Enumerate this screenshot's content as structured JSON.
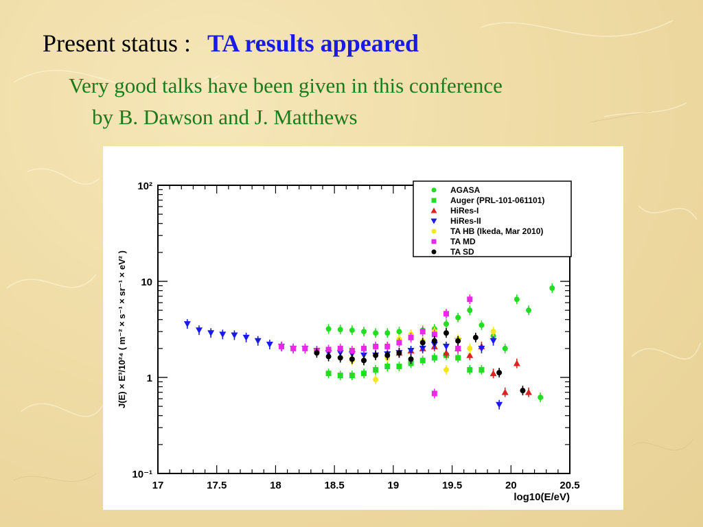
{
  "slide": {
    "title_prefix": "Present status :",
    "title_highlight": "TA results appeared",
    "subtitle_line1": "Very good talks have been given in this conference",
    "subtitle_line2": "by B. Dawson and J. Matthews"
  },
  "chart_data": {
    "type": "scatter",
    "xlabel": "log10(E/eV)",
    "ylabel": "J(E) × E³/10²⁴ ( m⁻² × s⁻¹ × sr⁻¹ × eV² )",
    "xlim": [
      17,
      20.5
    ],
    "ylim": [
      0.1,
      100
    ],
    "yscale": "log",
    "x_ticks": [
      "17",
      "17.5",
      "18",
      "18.5",
      "19",
      "19.5",
      "20",
      "20.5"
    ],
    "y_ticks": [
      {
        "value": 100,
        "label": "10²"
      },
      {
        "value": 10,
        "label": "10"
      },
      {
        "value": 1,
        "label": "1"
      },
      {
        "value": 0.1,
        "label": "10⁻¹"
      }
    ],
    "grid": false,
    "legend_position": "top-right",
    "series": [
      {
        "name": "AGASA",
        "marker": "circle",
        "color": "#22dd22",
        "points": [
          {
            "x": 18.45,
            "y": 3.2
          },
          {
            "x": 18.55,
            "y": 3.15
          },
          {
            "x": 18.65,
            "y": 3.1
          },
          {
            "x": 18.75,
            "y": 3.0
          },
          {
            "x": 18.85,
            "y": 2.9
          },
          {
            "x": 18.95,
            "y": 2.9
          },
          {
            "x": 19.05,
            "y": 3.0
          },
          {
            "x": 19.15,
            "y": 2.8
          },
          {
            "x": 19.25,
            "y": 3.1
          },
          {
            "x": 19.35,
            "y": 3.2
          },
          {
            "x": 19.45,
            "y": 3.6
          },
          {
            "x": 19.55,
            "y": 4.2
          },
          {
            "x": 19.65,
            "y": 5.0
          },
          {
            "x": 19.75,
            "y": 3.5
          },
          {
            "x": 19.85,
            "y": 2.7
          },
          {
            "x": 19.95,
            "y": 2.0
          },
          {
            "x": 20.05,
            "y": 6.5
          },
          {
            "x": 20.15,
            "y": 5.0
          },
          {
            "x": 20.25,
            "y": 0.62
          },
          {
            "x": 20.35,
            "y": 8.5
          }
        ]
      },
      {
        "name": "Auger (PRL-101-061101)",
        "marker": "square",
        "color": "#22dd22",
        "points": [
          {
            "x": 18.45,
            "y": 1.1
          },
          {
            "x": 18.55,
            "y": 1.05
          },
          {
            "x": 18.65,
            "y": 1.05
          },
          {
            "x": 18.75,
            "y": 1.1
          },
          {
            "x": 18.85,
            "y": 1.2
          },
          {
            "x": 18.95,
            "y": 1.3
          },
          {
            "x": 19.05,
            "y": 1.3
          },
          {
            "x": 19.15,
            "y": 1.4
          },
          {
            "x": 19.25,
            "y": 1.5
          },
          {
            "x": 19.35,
            "y": 1.6
          },
          {
            "x": 19.45,
            "y": 1.7
          },
          {
            "x": 19.55,
            "y": 1.6
          },
          {
            "x": 19.65,
            "y": 1.2
          },
          {
            "x": 19.75,
            "y": 1.2
          }
        ]
      },
      {
        "name": "HiRes-I",
        "marker": "triangle-up",
        "color": "#dd2222",
        "points": [
          {
            "x": 19.05,
            "y": 1.8
          },
          {
            "x": 19.15,
            "y": 1.9
          },
          {
            "x": 19.25,
            "y": 2.0
          },
          {
            "x": 19.35,
            "y": 2.1
          },
          {
            "x": 19.45,
            "y": 1.8
          },
          {
            "x": 19.55,
            "y": 2.0
          },
          {
            "x": 19.65,
            "y": 1.7
          },
          {
            "x": 19.75,
            "y": 2.1
          },
          {
            "x": 19.85,
            "y": 1.1
          },
          {
            "x": 19.95,
            "y": 0.7
          },
          {
            "x": 20.05,
            "y": 1.4
          },
          {
            "x": 20.15,
            "y": 0.7
          }
        ]
      },
      {
        "name": "HiRes-II",
        "marker": "triangle-down",
        "color": "#1a1aee",
        "points": [
          {
            "x": 17.25,
            "y": 3.6
          },
          {
            "x": 17.35,
            "y": 3.1
          },
          {
            "x": 17.45,
            "y": 2.9
          },
          {
            "x": 17.55,
            "y": 2.8
          },
          {
            "x": 17.65,
            "y": 2.75
          },
          {
            "x": 17.75,
            "y": 2.6
          },
          {
            "x": 17.85,
            "y": 2.4
          },
          {
            "x": 17.95,
            "y": 2.2
          },
          {
            "x": 18.05,
            "y": 2.1
          },
          {
            "x": 18.15,
            "y": 2.0
          },
          {
            "x": 18.25,
            "y": 2.0
          },
          {
            "x": 18.35,
            "y": 1.9
          },
          {
            "x": 18.45,
            "y": 1.8
          },
          {
            "x": 18.55,
            "y": 1.8
          },
          {
            "x": 18.65,
            "y": 1.75
          },
          {
            "x": 18.75,
            "y": 1.7
          },
          {
            "x": 18.85,
            "y": 1.7
          },
          {
            "x": 18.95,
            "y": 1.75
          },
          {
            "x": 19.05,
            "y": 1.8
          },
          {
            "x": 19.15,
            "y": 1.9
          },
          {
            "x": 19.25,
            "y": 2.0
          },
          {
            "x": 19.35,
            "y": 2.2
          },
          {
            "x": 19.45,
            "y": 2.1
          },
          {
            "x": 19.55,
            "y": 2.4
          },
          {
            "x": 19.75,
            "y": 2.0
          },
          {
            "x": 19.85,
            "y": 2.4
          },
          {
            "x": 19.9,
            "y": 0.52
          }
        ]
      },
      {
        "name": "TA HB (Ikeda, Mar 2010)",
        "marker": "circle",
        "color": "#f2e81a",
        "points": [
          {
            "x": 18.55,
            "y": 1.6
          },
          {
            "x": 18.65,
            "y": 1.5
          },
          {
            "x": 18.75,
            "y": 1.5
          },
          {
            "x": 18.85,
            "y": 0.95
          },
          {
            "x": 18.95,
            "y": 1.6
          },
          {
            "x": 19.05,
            "y": 2.5
          },
          {
            "x": 19.15,
            "y": 2.8
          },
          {
            "x": 19.25,
            "y": 2.4
          },
          {
            "x": 19.35,
            "y": 3.0
          },
          {
            "x": 19.45,
            "y": 1.2
          },
          {
            "x": 19.55,
            "y": 2.5
          },
          {
            "x": 19.65,
            "y": 2.0
          },
          {
            "x": 19.85,
            "y": 3.0
          }
        ]
      },
      {
        "name": "TA MD",
        "marker": "square",
        "color": "#e82ae8",
        "points": [
          {
            "x": 18.05,
            "y": 2.1
          },
          {
            "x": 18.15,
            "y": 2.0
          },
          {
            "x": 18.25,
            "y": 2.0
          },
          {
            "x": 18.35,
            "y": 1.9
          },
          {
            "x": 18.45,
            "y": 1.95
          },
          {
            "x": 18.55,
            "y": 2.0
          },
          {
            "x": 18.65,
            "y": 1.9
          },
          {
            "x": 18.75,
            "y": 2.0
          },
          {
            "x": 18.85,
            "y": 2.1
          },
          {
            "x": 18.95,
            "y": 2.1
          },
          {
            "x": 19.05,
            "y": 2.3
          },
          {
            "x": 19.15,
            "y": 2.6
          },
          {
            "x": 19.25,
            "y": 3.0
          },
          {
            "x": 19.35,
            "y": 2.8
          },
          {
            "x": 19.45,
            "y": 4.6
          },
          {
            "x": 19.55,
            "y": 2.0
          },
          {
            "x": 19.65,
            "y": 6.5
          },
          {
            "x": 19.35,
            "y": 0.68
          }
        ]
      },
      {
        "name": "TA SD",
        "marker": "circle",
        "color": "#000000",
        "points": [
          {
            "x": 18.35,
            "y": 1.8
          },
          {
            "x": 18.45,
            "y": 1.65
          },
          {
            "x": 18.55,
            "y": 1.6
          },
          {
            "x": 18.65,
            "y": 1.55
          },
          {
            "x": 18.75,
            "y": 1.5
          },
          {
            "x": 18.85,
            "y": 1.7
          },
          {
            "x": 18.95,
            "y": 1.7
          },
          {
            "x": 19.05,
            "y": 1.8
          },
          {
            "x": 19.15,
            "y": 1.55
          },
          {
            "x": 19.25,
            "y": 2.3
          },
          {
            "x": 19.35,
            "y": 2.4
          },
          {
            "x": 19.45,
            "y": 2.9
          },
          {
            "x": 19.55,
            "y": 2.4
          },
          {
            "x": 19.7,
            "y": 2.6
          },
          {
            "x": 19.9,
            "y": 1.12
          },
          {
            "x": 20.1,
            "y": 0.73
          }
        ]
      }
    ]
  }
}
